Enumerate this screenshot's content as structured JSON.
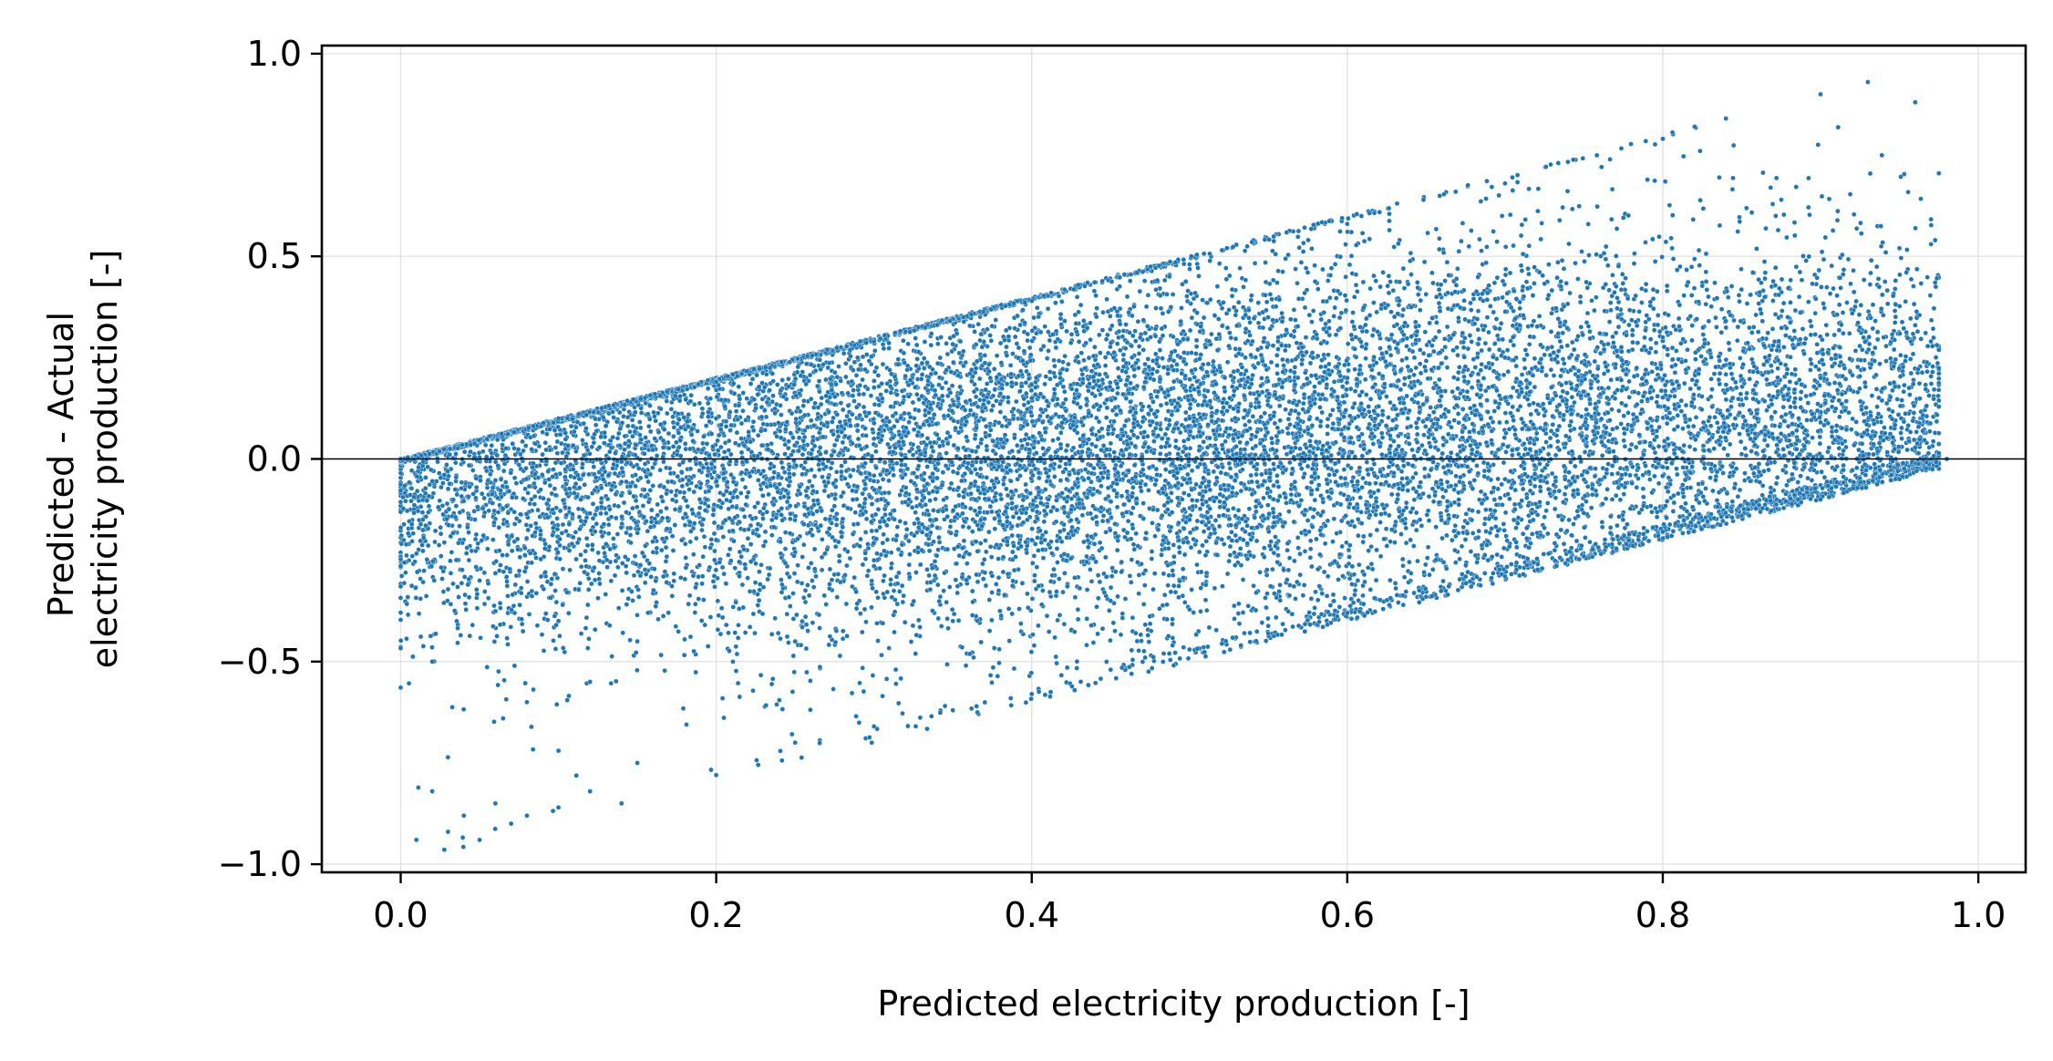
{
  "chart_data": {
    "type": "scatter",
    "xlabel": "Predicted electricity production [-]",
    "ylabel_lines": [
      "Predicted - Actual",
      "electricity production [-]"
    ],
    "xlim": [
      -0.05,
      1.03
    ],
    "ylim": [
      -1.02,
      1.02
    ],
    "x_ticks": [
      0.0,
      0.2,
      0.4,
      0.6,
      0.8,
      1.0
    ],
    "x_tick_labels": [
      "0.0",
      "0.2",
      "0.4",
      "0.6",
      "0.8",
      "1.0"
    ],
    "y_ticks": [
      -1.0,
      -0.5,
      0.0,
      0.5,
      1.0
    ],
    "y_tick_labels": [
      "−1.0",
      "−0.5",
      "0.0",
      "0.5",
      "1.0"
    ],
    "grid": true,
    "reference_line_y": 0.0,
    "marker_color": "#1f77b4",
    "marker_edge_color": "#ffffff",
    "series": [
      {
        "values_note": "",
        "points": [
          [
            0.0,
            0.0
          ],
          [
            0.01,
            -0.94
          ],
          [
            0.02,
            -0.82
          ],
          [
            0.03,
            -0.92
          ],
          [
            0.04,
            -0.88
          ],
          [
            0.05,
            -0.94
          ],
          [
            0.06,
            -0.85
          ],
          [
            0.07,
            -0.9
          ],
          [
            0.08,
            -0.88
          ],
          [
            0.1,
            -0.86
          ],
          [
            0.12,
            -0.82
          ],
          [
            0.14,
            -0.85
          ],
          [
            0.1,
            -0.72
          ],
          [
            0.15,
            -0.75
          ],
          [
            0.2,
            -0.78
          ],
          [
            0.25,
            -0.7
          ],
          [
            0.3,
            -0.66
          ],
          [
            0.35,
            -0.62
          ],
          [
            0.4,
            -0.58
          ],
          [
            0.45,
            -0.52
          ],
          [
            0.5,
            -0.47
          ],
          [
            0.55,
            -0.43
          ],
          [
            0.6,
            -0.38
          ],
          [
            0.65,
            -0.34
          ],
          [
            0.7,
            -0.29
          ],
          [
            0.75,
            -0.24
          ],
          [
            0.8,
            -0.18
          ],
          [
            0.85,
            -0.14
          ],
          [
            0.9,
            -0.1
          ],
          [
            0.95,
            -0.05
          ],
          [
            0.98,
            0.0
          ],
          [
            0.1,
            0.1
          ],
          [
            0.2,
            0.19
          ],
          [
            0.3,
            0.29
          ],
          [
            0.4,
            0.39
          ],
          [
            0.5,
            0.48
          ],
          [
            0.6,
            0.58
          ],
          [
            0.7,
            0.68
          ],
          [
            0.8,
            0.79
          ],
          [
            0.84,
            0.84
          ],
          [
            0.9,
            0.9
          ],
          [
            0.93,
            0.93
          ],
          [
            0.96,
            0.88
          ],
          [
            0.95,
            0.52
          ],
          [
            0.97,
            0.53
          ],
          [
            0.96,
            0.33
          ],
          [
            0.2,
            0.1
          ],
          [
            0.3,
            0.05
          ],
          [
            0.4,
            0.15
          ],
          [
            0.5,
            0.1
          ],
          [
            0.6,
            0.2
          ],
          [
            0.7,
            0.25
          ],
          [
            0.8,
            0.3
          ],
          [
            0.9,
            0.2
          ],
          [
            0.2,
            -0.2
          ],
          [
            0.3,
            -0.25
          ],
          [
            0.4,
            -0.2
          ],
          [
            0.5,
            -0.15
          ],
          [
            0.6,
            -0.1
          ],
          [
            0.7,
            -0.05
          ],
          [
            0.8,
            -0.02
          ],
          [
            0.05,
            -0.3
          ],
          [
            0.1,
            -0.4
          ],
          [
            0.15,
            -0.45
          ],
          [
            0.02,
            -0.5
          ],
          [
            0.08,
            -0.6
          ],
          [
            0.12,
            -0.55
          ],
          [
            0.25,
            -0.45
          ],
          [
            0.35,
            -0.4
          ],
          [
            0.45,
            -0.35
          ]
        ]
      }
    ]
  }
}
